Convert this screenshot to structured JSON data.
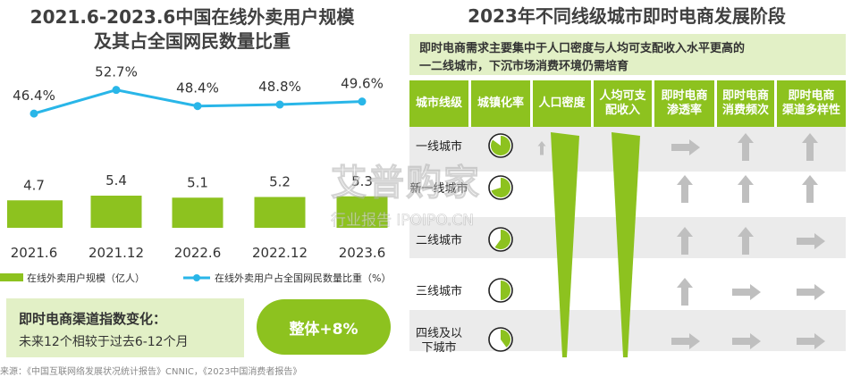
{
  "left": {
    "title_line1": "2021.6-2023.6中国在线外卖用户规模",
    "title_line2": "及其占全国网民数量比重",
    "chart_data": {
      "type": "bar",
      "categories": [
        "2021.6",
        "2021.12",
        "2022.6",
        "2022.12",
        "2023.6"
      ],
      "series": [
        {
          "name": "在线外卖用户规模（亿人）",
          "type": "bar",
          "values": [
            4.7,
            5.4,
            5.1,
            5.2,
            5.3
          ],
          "labels": [
            "4.7",
            "5.4",
            "5.1",
            "5.2",
            "5.3"
          ],
          "color": "#8dc21f"
        },
        {
          "name": "在线外卖用户占全国网民数量比重（%）",
          "type": "line",
          "values": [
            46.4,
            52.7,
            48.4,
            48.8,
            49.6
          ],
          "labels": [
            "46.4%",
            "52.7%",
            "48.4%",
            "48.8%",
            "49.6%"
          ],
          "color": "#29b6e8"
        }
      ]
    },
    "callout_title": "即时电商渠道指数变化：",
    "callout_text": "未来12个相较于过去6-12个月",
    "overall_badge": "整体+8%"
  },
  "right": {
    "title": "2023年不同线级城市即时电商发展阶段",
    "subtitle_line1": "即时电商需求主要集中于人口密度与人均可支配收入水平更高的",
    "subtitle_line2": "一二线城市，下沉市场消费环境仍需培育",
    "headers": [
      "城市线级",
      "城镇化率",
      "人口密度",
      "人均可支配收入",
      "即时电商渗透率",
      "即时电商消费频次",
      "即时电商渠道多样性"
    ],
    "header_display": [
      [
        "城市线级"
      ],
      [
        "城镇化率"
      ],
      [
        "人口密度"
      ],
      [
        "人均可支",
        "配收入"
      ],
      [
        "即时电商",
        "渗透率"
      ],
      [
        "即时电商",
        "消费频次"
      ],
      [
        "即时电商",
        "渠道多样性"
      ]
    ],
    "rows": [
      {
        "city": [
          "一线城市"
        ],
        "urbanization": 0.85,
        "penetration": "right",
        "frequency": "up",
        "diversity": "up"
      },
      {
        "city": [
          "新一线城市"
        ],
        "urbanization": 0.7,
        "penetration": "up",
        "frequency": "up",
        "diversity": "up"
      },
      {
        "city": [
          "二线城市"
        ],
        "urbanization": 0.6,
        "penetration": "up",
        "frequency": "up",
        "diversity": "right"
      },
      {
        "city": [
          "三线城市"
        ],
        "urbanization": 0.5,
        "penetration": "up",
        "frequency": "right",
        "diversity": "right"
      },
      {
        "city": [
          "四线及以",
          "下城市"
        ],
        "urbanization": 0.4,
        "penetration": "right",
        "frequency": "right",
        "diversity": "right"
      }
    ]
  },
  "footer_source": "来源：《中国互联网络发展状况统计报告》CNNIC，《2023中国消费者报告》",
  "watermark": {
    "line1": "艾普购家",
    "line2": "行业报告 IPOIPO.CN"
  },
  "colors": {
    "green": "#8dc21f",
    "blue": "#29b6e8",
    "gray_arrow": "#bfbfbf",
    "band": "#e8e8e8",
    "light_green": "#e2f0c6"
  }
}
